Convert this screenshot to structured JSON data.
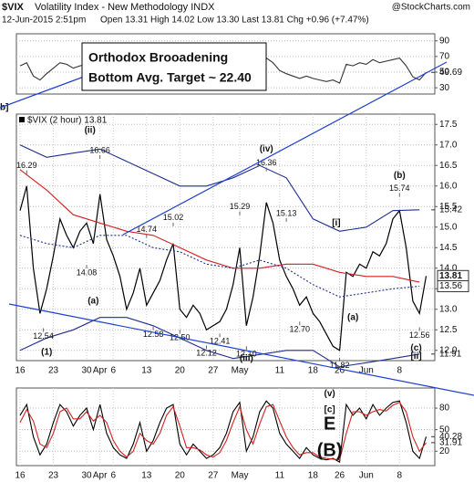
{
  "header": {
    "symbol": "$VIX",
    "name": "Volatility Index - New Methodology INDX",
    "date": "12-Jun-2015 2:51pm",
    "quote": "Open 13.31 High 14.02 Low 13.30 Last 13.81 Chg +0.96 (+7.47%)",
    "credit": "@StockCharts.com"
  },
  "note": [
    "Orthodox Brooadening",
    "Bottom Avg. Target ~ 22.40"
  ],
  "chart_data": [
    {
      "type": "line",
      "xlim": [
        -0.55,
        62.3
      ],
      "ylim": [
        22,
        99
      ],
      "yticks": [
        30,
        50,
        70,
        90
      ],
      "grid": true,
      "x": [
        0,
        1,
        2,
        3,
        4,
        5,
        6,
        7,
        8,
        9,
        10,
        11,
        12,
        13,
        14,
        15,
        16,
        17,
        18,
        19,
        20,
        21,
        22,
        23,
        24,
        25,
        26,
        27,
        28,
        29,
        30,
        31,
        32,
        33,
        34,
        35,
        36,
        37,
        38,
        39,
        40,
        41,
        42,
        43,
        44,
        45,
        46,
        47,
        48,
        49,
        50,
        51,
        52,
        53,
        54,
        55,
        56,
        57,
        58,
        59,
        60,
        61
      ],
      "series": [
        {
          "color": "#333333",
          "values": [
            58,
            62,
            45,
            40,
            48,
            55,
            62,
            60,
            55,
            58,
            60,
            52,
            65,
            50,
            48,
            45,
            42,
            48,
            55,
            45,
            50,
            55,
            60,
            62,
            45,
            42,
            48,
            45,
            40,
            42,
            45,
            50,
            58,
            65,
            42,
            50,
            62,
            68,
            62,
            52,
            48,
            45,
            42,
            45,
            42,
            40,
            38,
            40,
            36,
            60,
            58,
            62,
            60,
            66,
            62,
            64,
            66,
            68,
            58,
            44,
            40,
            49.69
          ]
        }
      ],
      "end_labels": [
        {
          "label": "49.69",
          "value": 49.69
        }
      ],
      "annotations": [
        {
          "text": "b]",
          "color": "#c00000"
        }
      ]
    },
    {
      "type": "line",
      "xlim": [
        -0.55,
        62.3
      ],
      "ylim": [
        11.75,
        17.75
      ],
      "yticks": [
        {
          "value": 12,
          "label": "12.0"
        },
        12.5,
        {
          "value": 13,
          "label": "13.0"
        },
        13.5,
        {
          "value": 14,
          "label": "14.0"
        },
        14.5,
        {
          "value": 15,
          "label": "15.0"
        },
        15.5,
        {
          "value": 16,
          "label": "16.0"
        },
        16.5,
        {
          "value": 17,
          "label": "17.0"
        },
        17.5
      ],
      "xticks": [
        {
          "value": 0,
          "label": "16"
        },
        {
          "value": 5,
          "label": "23"
        },
        {
          "value": 10,
          "label": "30"
        },
        {
          "value": 12,
          "label": "Apr"
        },
        {
          "value": 14,
          "label": "6"
        },
        {
          "value": 19,
          "label": "13"
        },
        {
          "value": 24,
          "label": "20"
        },
        {
          "value": 29,
          "label": "27"
        },
        {
          "value": 33,
          "label": "May"
        },
        {
          "value": 39,
          "label": "11"
        },
        {
          "value": 44,
          "label": "18"
        },
        {
          "value": 48,
          "label": "26"
        },
        {
          "value": 52,
          "label": "Jun"
        },
        {
          "value": 57,
          "label": "8"
        }
      ],
      "grid": true,
      "x": [
        0,
        1,
        2,
        3,
        4,
        5,
        6,
        7,
        8,
        9,
        10,
        11,
        12,
        13,
        14,
        15,
        16,
        17,
        18,
        19,
        20,
        21,
        22,
        23,
        24,
        25,
        26,
        27,
        28,
        29,
        30,
        31,
        32,
        33,
        34,
        35,
        36,
        37,
        38,
        39,
        40,
        41,
        42,
        43,
        44,
        45,
        46,
        47,
        48,
        49,
        50,
        51,
        52,
        53,
        54,
        55,
        56,
        57,
        58,
        59,
        60,
        61
      ],
      "series": [
        {
          "name": "$VIX (2 hour) 13.81",
          "color": "#000000",
          "values": [
            15.4,
            16.0,
            14.0,
            12.9,
            13.5,
            14.3,
            15.2,
            14.8,
            14.5,
            14.9,
            15.1,
            14.6,
            15.8,
            14.7,
            14.3,
            13.8,
            13.0,
            13.4,
            14.0,
            13.1,
            13.4,
            13.7,
            14.2,
            14.6,
            13.0,
            12.8,
            13.1,
            12.9,
            12.5,
            12.6,
            12.7,
            13.0,
            13.6,
            14.5,
            12.6,
            13.3,
            14.3,
            15.6,
            15.1,
            14.2,
            13.8,
            13.5,
            13.1,
            13.3,
            12.9,
            12.7,
            12.4,
            12.1,
            12.0,
            13.9,
            13.8,
            14.1,
            14.0,
            14.4,
            14.3,
            14.6,
            15.2,
            15.4,
            14.5,
            13.2,
            12.9,
            13.81
          ]
        },
        {
          "color": "#1f2f8f",
          "x": [
            0,
            4,
            8,
            12,
            16,
            20,
            24,
            28,
            32,
            36,
            40,
            44,
            48,
            52,
            56,
            60
          ],
          "values": [
            17.0,
            16.7,
            16.8,
            16.9,
            16.6,
            16.3,
            16.0,
            16.0,
            16.2,
            16.5,
            16.2,
            15.2,
            14.9,
            15.0,
            15.4,
            15.42
          ]
        },
        {
          "color": "#1f2f8f",
          "x": [
            0,
            4,
            8,
            12,
            16,
            20,
            24,
            28,
            32,
            36,
            40,
            44,
            48,
            52,
            56,
            60
          ],
          "values": [
            12.0,
            12.3,
            12.5,
            12.8,
            12.8,
            12.6,
            12.3,
            12.0,
            11.8,
            11.9,
            12.0,
            12.0,
            11.6,
            11.7,
            11.8,
            11.91
          ]
        },
        {
          "color": "#d62020",
          "x": [
            0,
            4,
            8,
            12,
            16,
            20,
            24,
            28,
            32,
            36,
            40,
            44,
            48,
            52,
            56,
            60
          ],
          "values": [
            16.4,
            15.9,
            15.3,
            15.1,
            14.9,
            14.8,
            14.5,
            14.2,
            14.0,
            14.0,
            14.1,
            14.1,
            13.9,
            13.8,
            13.8,
            13.66
          ]
        },
        {
          "color": "#1f2f8f",
          "dash": true,
          "x": [
            0,
            4,
            8,
            12,
            16,
            20,
            24,
            28,
            32,
            36,
            40,
            44,
            48,
            52,
            56,
            60
          ],
          "values": [
            14.8,
            14.6,
            14.5,
            14.8,
            14.8,
            14.5,
            14.4,
            14.1,
            14.0,
            14.2,
            14.0,
            13.6,
            13.3,
            13.4,
            13.5,
            13.56
          ]
        }
      ],
      "end_labels": [
        {
          "label": "15.42",
          "value": 15.42
        },
        {
          "label": "13.81",
          "value": 13.81,
          "box": true
        },
        {
          "label": "13.56",
          "value": 13.56,
          "box": true
        },
        {
          "label": "11.91",
          "value": 11.91
        }
      ],
      "price_labels": [
        {
          "label": "16.29",
          "x": 1,
          "value": 16.29
        },
        {
          "label": "12.54",
          "x": 3.5,
          "value": 12.54
        },
        {
          "label": "16.66",
          "x": 12,
          "value": 16.66
        },
        {
          "label": "14.08",
          "x": 10,
          "value": 14.08
        },
        {
          "label": "14.74",
          "x": 19,
          "value": 14.74
        },
        {
          "label": "15.02",
          "x": 23,
          "value": 15.02
        },
        {
          "label": "12.58",
          "x": 20,
          "value": 12.58
        },
        {
          "label": "12.50",
          "x": 24,
          "value": 12.5
        },
        {
          "label": "12.12",
          "x": 28,
          "value": 12.12
        },
        {
          "label": "12.41",
          "x": 30,
          "value": 12.41
        },
        {
          "label": "15.29",
          "x": 33,
          "value": 15.29
        },
        {
          "label": "12.10",
          "x": 34,
          "value": 12.1
        },
        {
          "label": "16.36",
          "x": 37,
          "value": 16.36
        },
        {
          "label": "15.13",
          "x": 40,
          "value": 15.13
        },
        {
          "label": "12.70",
          "x": 42,
          "value": 12.7
        },
        {
          "label": "11.82",
          "x": 48,
          "value": 11.82
        },
        {
          "label": "15.74",
          "x": 57,
          "value": 15.74
        },
        {
          "label": "12.56",
          "x": 60,
          "value": 12.56
        }
      ],
      "annotations": [
        {
          "text": "(ii)",
          "x": 10.5,
          "y": 17.35,
          "color": "#1a8f1a"
        },
        {
          "text": "(iv)",
          "x": 37,
          "y": 16.9,
          "color": "#1a8f1a"
        },
        {
          "text": "(b)",
          "x": 57,
          "y": 16.25,
          "color": "#1a8f1a"
        },
        {
          "text": "[i]",
          "x": 47.5,
          "y": 15.1,
          "color": "#c00000"
        },
        {
          "text": "(a)",
          "x": 11,
          "y": 13.2,
          "color": "#1a8f1a"
        },
        {
          "text": "(a)",
          "x": 50,
          "y": 12.8,
          "color": "#1a8f1a"
        },
        {
          "text": "(1)",
          "x": 4,
          "y": 11.95,
          "color": "#1a8f1a"
        },
        {
          "text": "(iii)",
          "x": 34,
          "y": 11.8,
          "color": "#1a8f1a"
        },
        {
          "text": "(c)",
          "x": 59.5,
          "y": 12.05,
          "color": "#1a8f1a"
        },
        {
          "text": "[ii]",
          "x": 59.5,
          "y": 11.85,
          "color": "#c00000"
        }
      ]
    },
    {
      "type": "line",
      "xlim": [
        -0.55,
        62.3
      ],
      "ylim": [
        0,
        108
      ],
      "yticks": [
        20,
        50,
        80
      ],
      "grid": true,
      "xticks": [
        {
          "value": 0,
          "label": "16"
        },
        {
          "value": 5,
          "label": "23"
        },
        {
          "value": 10,
          "label": "30"
        },
        {
          "value": 12,
          "label": "Apr"
        },
        {
          "value": 14,
          "label": "6"
        },
        {
          "value": 19,
          "label": "13"
        },
        {
          "value": 24,
          "label": "20"
        },
        {
          "value": 29,
          "label": "27"
        },
        {
          "value": 33,
          "label": "May"
        },
        {
          "value": 39,
          "label": "11"
        },
        {
          "value": 44,
          "label": "18"
        },
        {
          "value": 48,
          "label": "26"
        },
        {
          "value": 52,
          "label": "Jun"
        },
        {
          "value": 57,
          "label": "8"
        }
      ],
      "x": [
        0,
        1,
        2,
        3,
        4,
        5,
        6,
        7,
        8,
        9,
        10,
        11,
        12,
        13,
        14,
        15,
        16,
        17,
        18,
        19,
        20,
        21,
        22,
        23,
        24,
        25,
        26,
        27,
        28,
        29,
        30,
        31,
        32,
        33,
        34,
        35,
        36,
        37,
        38,
        39,
        40,
        41,
        42,
        43,
        44,
        45,
        46,
        47,
        48,
        49,
        50,
        51,
        52,
        53,
        54,
        55,
        56,
        57,
        58,
        59,
        60,
        61
      ],
      "series": [
        {
          "color": "#000000",
          "values": [
            70,
            85,
            40,
            15,
            30,
            60,
            85,
            75,
            55,
            70,
            80,
            50,
            85,
            45,
            25,
            15,
            10,
            30,
            60,
            20,
            35,
            60,
            80,
            85,
            30,
            15,
            30,
            20,
            10,
            15,
            25,
            45,
            75,
            88,
            20,
            40,
            75,
            90,
            80,
            45,
            30,
            20,
            10,
            25,
            15,
            10,
            8,
            10,
            5,
            85,
            70,
            80,
            65,
            85,
            70,
            80,
            88,
            90,
            60,
            20,
            10,
            40.28
          ]
        },
        {
          "color": "#d62020",
          "values": [
            60,
            78,
            62,
            30,
            25,
            45,
            75,
            80,
            65,
            65,
            75,
            62,
            70,
            60,
            35,
            20,
            12,
            20,
            45,
            35,
            30,
            45,
            70,
            82,
            55,
            25,
            25,
            22,
            15,
            12,
            18,
            35,
            60,
            82,
            50,
            30,
            58,
            82,
            85,
            62,
            40,
            25,
            15,
            18,
            18,
            12,
            10,
            9,
            8,
            45,
            75,
            75,
            70,
            75,
            78,
            76,
            84,
            88,
            75,
            40,
            20,
            31.91
          ]
        }
      ],
      "end_labels": [
        {
          "label": "40.28",
          "value": 40.28
        },
        {
          "label": "31.91",
          "value": 31.91
        }
      ],
      "annotations": [
        {
          "text": "(v)",
          "x": 46.5,
          "y": 100,
          "color": "#1a8f1a"
        },
        {
          "text": "[c]",
          "x": 46.5,
          "y": 78,
          "color": "#c00000"
        },
        {
          "text": "E",
          "x": 46.5,
          "y": 57,
          "color": "#8a2be2",
          "big": true
        },
        {
          "text": "(B)",
          "x": 46.5,
          "y": 20,
          "color": "#000000",
          "big": true
        }
      ]
    }
  ]
}
